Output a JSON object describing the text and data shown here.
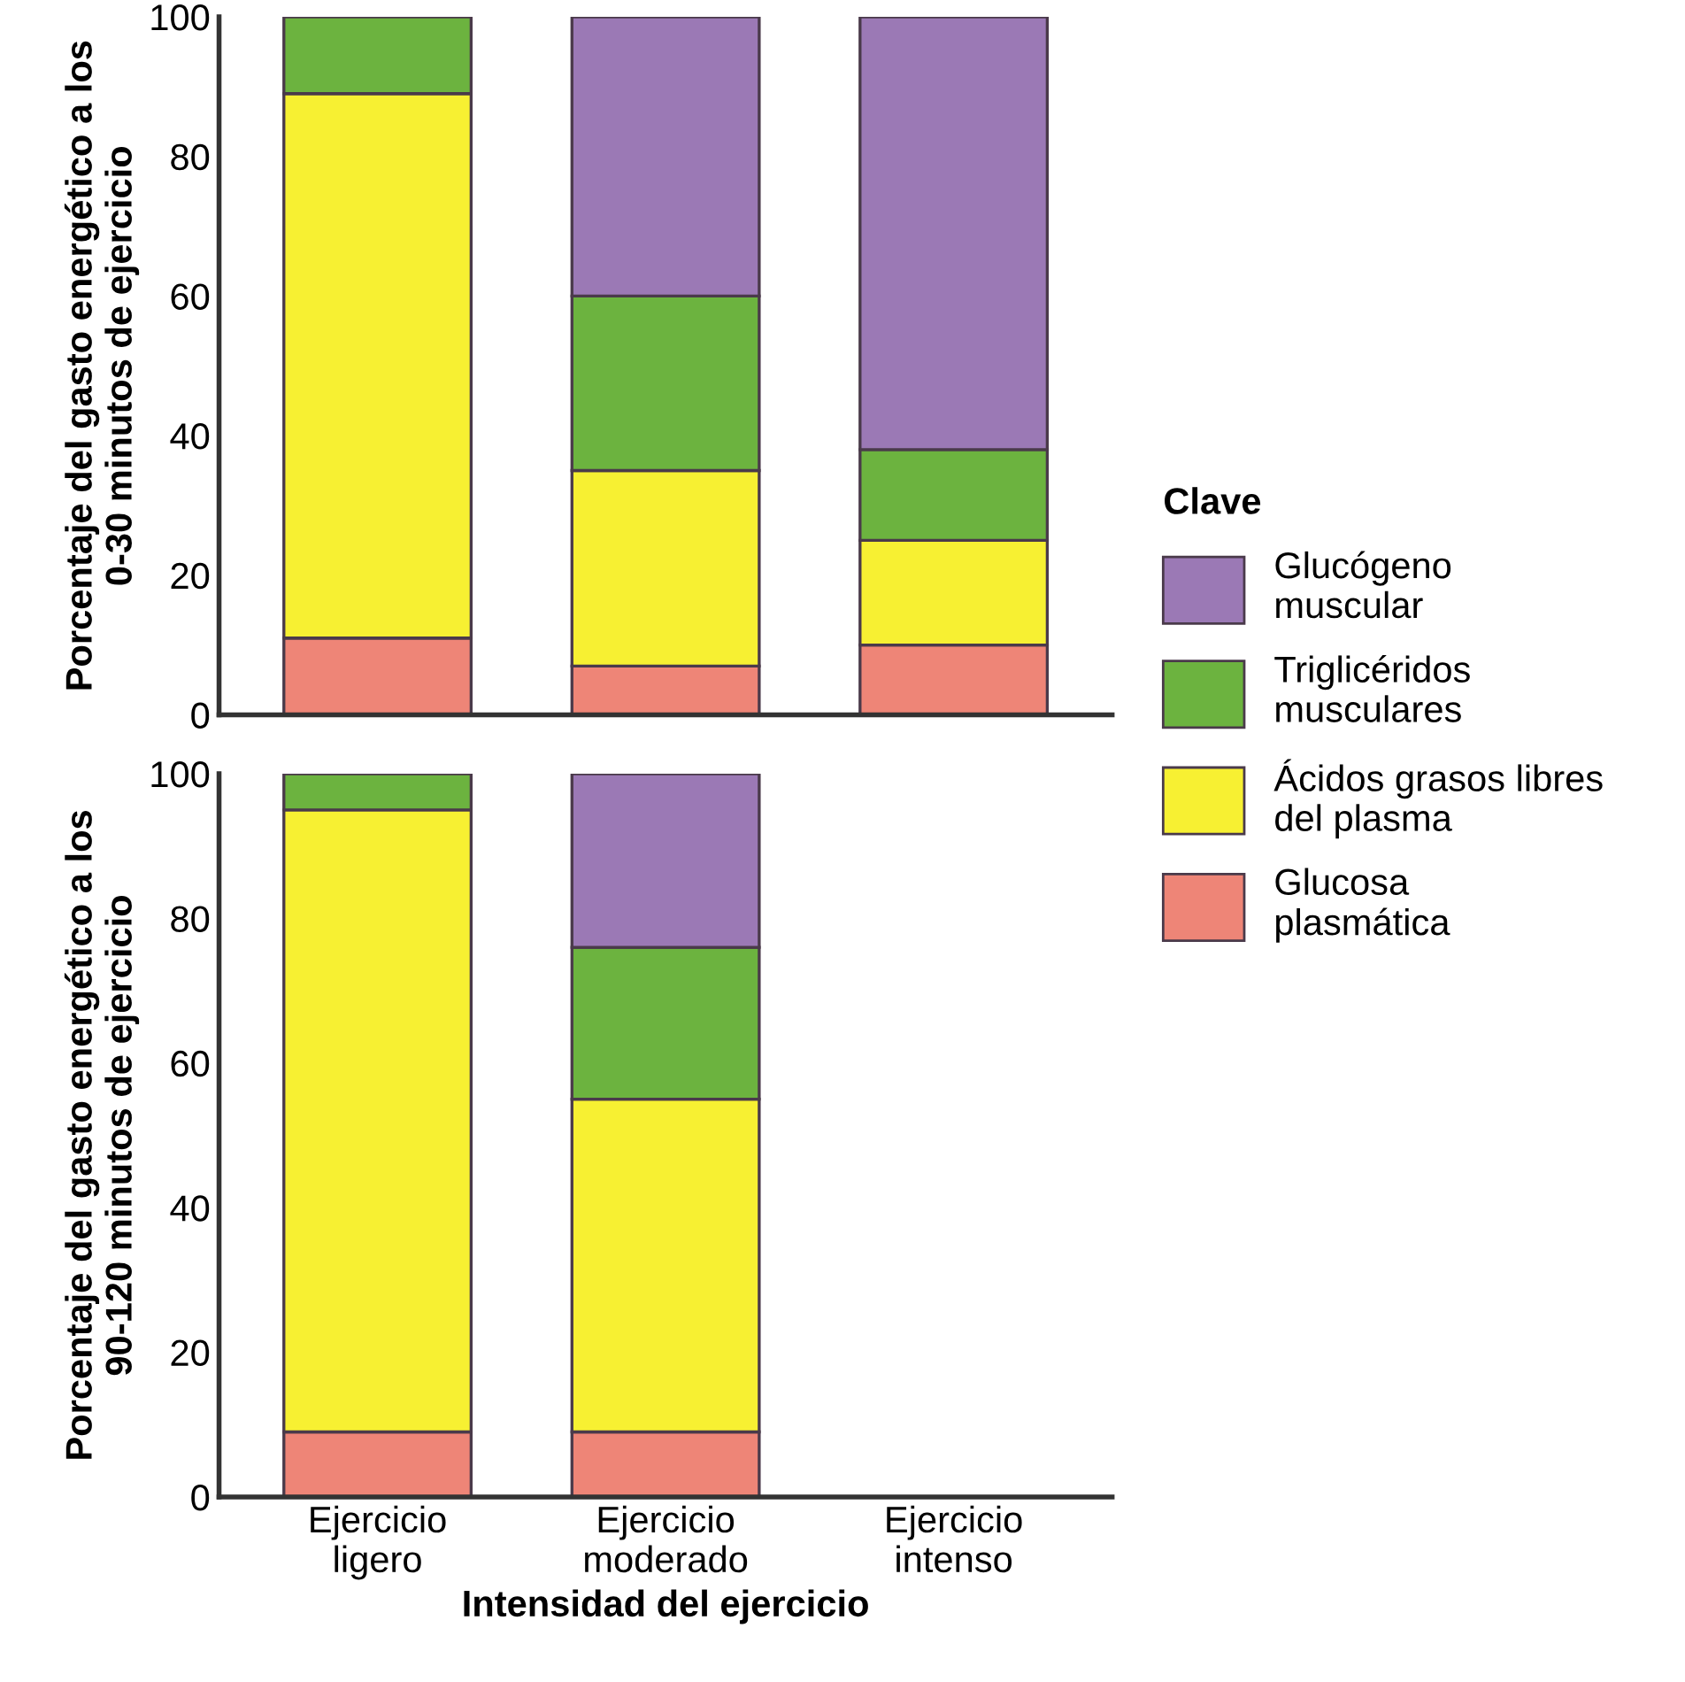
{
  "chart_data": [
    {
      "type": "bar",
      "stacked": true,
      "ylabel": "Porcentaje del gasto energético a los\n0-30 minutos de ejercicio",
      "categories": [
        null,
        null,
        null
      ],
      "ylim": [
        0,
        100
      ],
      "yticks": [
        0,
        20,
        40,
        60,
        80,
        100
      ],
      "tick_labels": "y",
      "grid": false,
      "legend": "right",
      "legend_title": "Clave",
      "series": [
        {
          "name": "Glucosa\nplasmática",
          "color": "#ee8577",
          "values": [
            11,
            7,
            10
          ]
        },
        {
          "name": "Ácidos grasos libres\ndel plasma",
          "color": "#f7f032",
          "values": [
            78,
            28,
            15
          ]
        },
        {
          "name": "Triglicéridos\nmusculares",
          "color": "#6cb33f",
          "values": [
            11,
            25,
            13
          ]
        },
        {
          "name": "Glucógeno\nmuscular",
          "color": "#9b79b5",
          "values": [
            null,
            40,
            62
          ]
        }
      ]
    },
    {
      "type": "bar",
      "stacked": true,
      "ylabel": "Porcentaje del gasto energético a los\n90-120 minutos de ejercicio",
      "xlabel": "Intensidad del ejercicio",
      "categories": [
        "Ejercicio\nligero",
        "Ejercicio\nmoderado",
        "Ejercicio\nintenso"
      ],
      "ylim": [
        0,
        100
      ],
      "yticks": [
        0,
        20,
        40,
        60,
        80,
        100
      ],
      "grid": false,
      "legend": false,
      "series": [
        {
          "color": "#ee8577",
          "values": [
            9,
            9,
            null
          ]
        },
        {
          "color": "#f7f032",
          "values": [
            86,
            46,
            null
          ]
        },
        {
          "color": "#6cb33f",
          "values": [
            5,
            21,
            null
          ]
        },
        {
          "color": "#9b79b5",
          "values": [
            null,
            24,
            null
          ]
        }
      ]
    }
  ]
}
